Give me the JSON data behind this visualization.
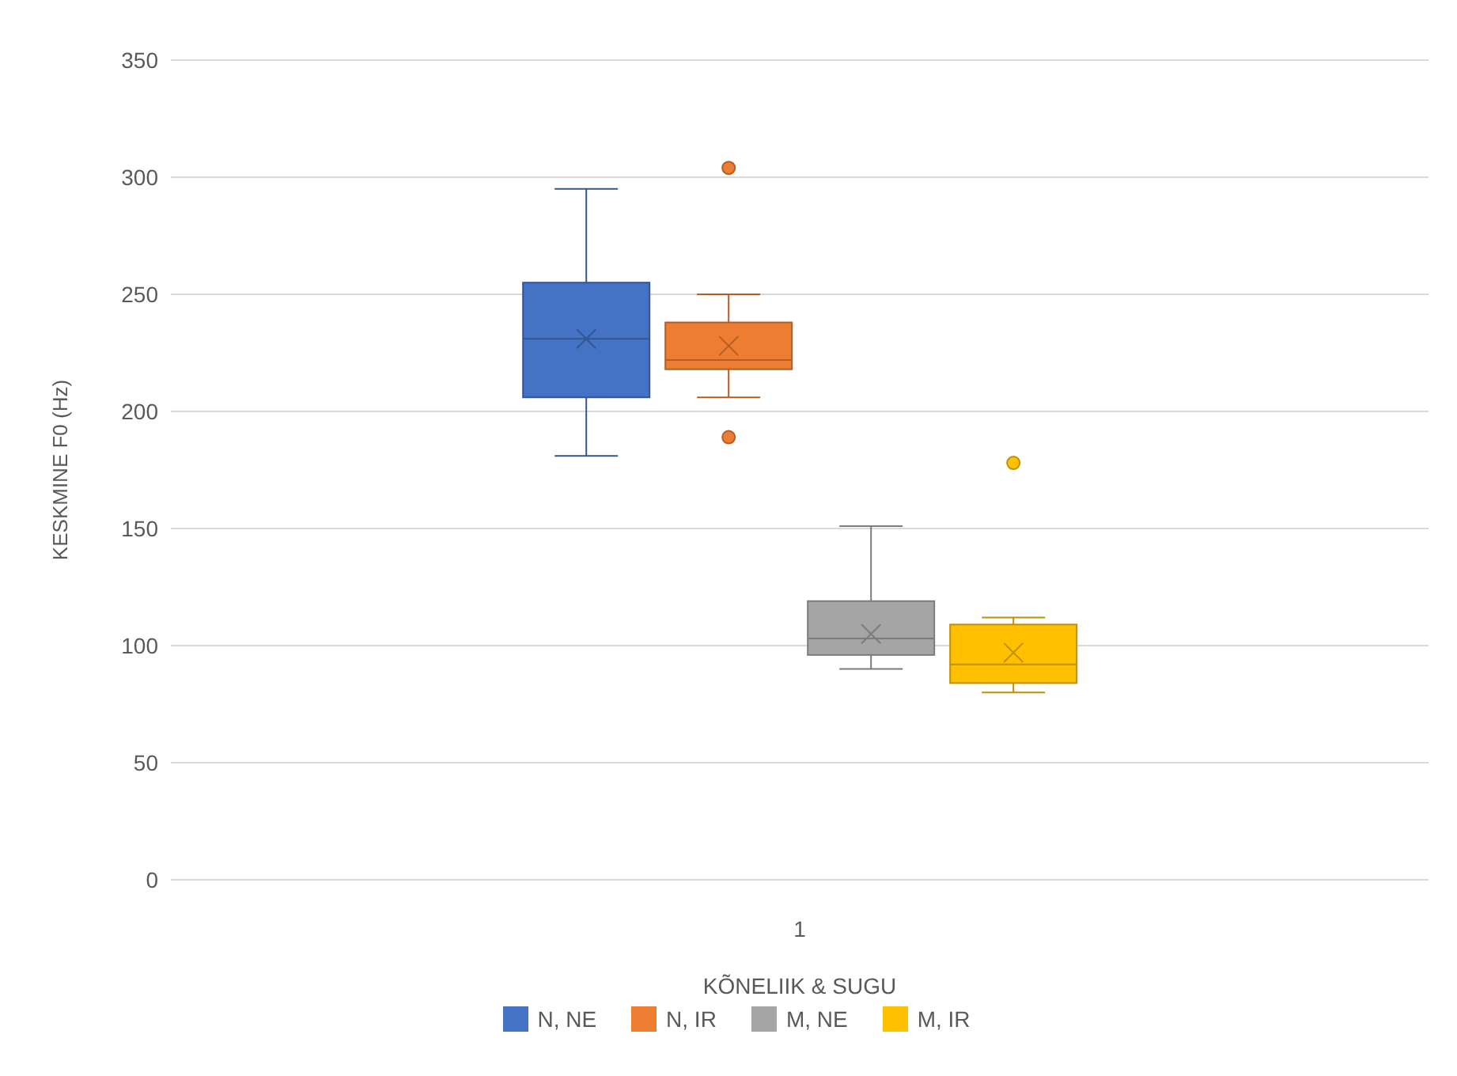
{
  "chart_data": {
    "type": "box",
    "xlabel": "KÕNELIIK & SUGU",
    "ylabel": "KESKMINE F0 (Hz)",
    "categories": [
      "1"
    ],
    "ylim": [
      0,
      350
    ],
    "yticks": [
      0,
      50,
      100,
      150,
      200,
      250,
      300,
      350
    ],
    "grid": "y",
    "legend": "bottom",
    "series": [
      {
        "name": "N, NE",
        "color": "#4472c4",
        "boxes": [
          {
            "low": 181,
            "q1": 206,
            "median": 231,
            "q3": 255,
            "high": 295,
            "mean": 231
          }
        ]
      },
      {
        "name": "N, IR",
        "color": "#ed7d31",
        "boxes": [
          {
            "low": 206,
            "q1": 218,
            "median": 222,
            "q3": 238,
            "high": 250,
            "mean": 228,
            "outliers": [
              304,
              189
            ]
          }
        ]
      },
      {
        "name": "M, NE",
        "color": "#a5a5a5",
        "boxes": [
          {
            "low": 90,
            "q1": 96,
            "median": 103,
            "q3": 119,
            "high": 151,
            "mean": 105
          }
        ]
      },
      {
        "name": "M, IR",
        "color": "#ffc000",
        "boxes": [
          {
            "low": 80,
            "q1": 84,
            "median": 92,
            "q3": 109,
            "high": 112,
            "mean": 97,
            "outliers": [
              178
            ]
          }
        ]
      }
    ]
  }
}
